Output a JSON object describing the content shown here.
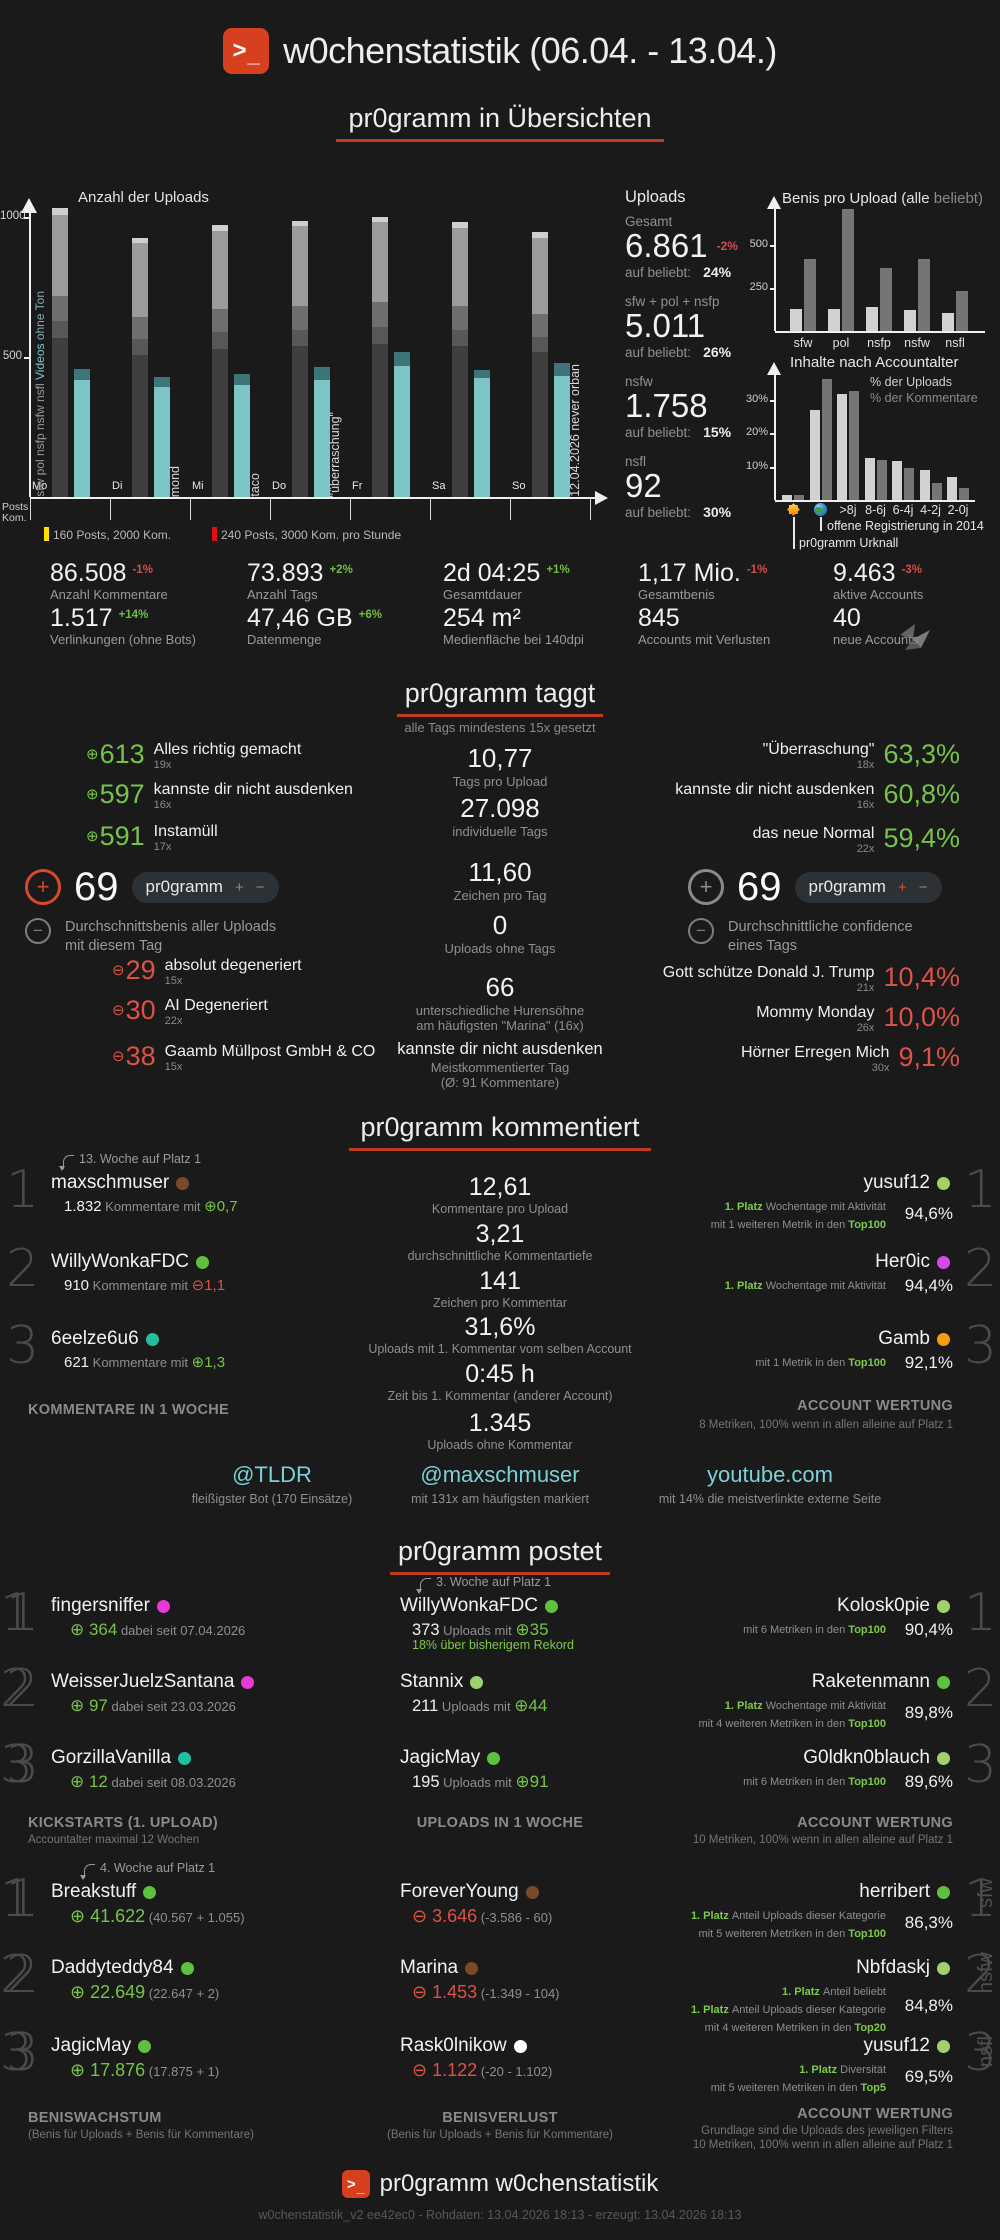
{
  "colors": {
    "background": "#1a1a1a",
    "accent_red_underline": "#c03a1c",
    "icon_red": "#d6401f",
    "green": "#76c34a",
    "red": "#db5247",
    "teal": "#7cc4c6",
    "teal_dark": "#3d7579",
    "cyan_link": "#7cd0da",
    "legend_yellow": "#ffe000",
    "legend_red": "#e01010"
  },
  "header": {
    "title": "w0chenstatistik (06.04. - 13.04.)"
  },
  "sections": {
    "uebersichten": {
      "heading": "pr0gramm in Übersichten"
    },
    "taggt": {
      "heading": "pr0gramm taggt",
      "subtitle": "alle Tags mindestens 15x gesetzt"
    },
    "kommentiert": {
      "heading": "pr0gramm kommentiert"
    },
    "postet": {
      "heading": "pr0gramm postet"
    }
  },
  "uploads_panel": {
    "title": "Uploads",
    "items": [
      {
        "label": "Gesamt",
        "value": "6.861",
        "delta": "-2%",
        "dir": "down",
        "beliebt_label": "auf beliebt:",
        "beliebt": "24%"
      },
      {
        "label": "sfw + pol + nsfp",
        "value": "5.011",
        "beliebt_label": "auf beliebt:",
        "beliebt": "26%"
      },
      {
        "label": "nsfw",
        "value": "1.758",
        "beliebt_label": "auf beliebt:",
        "beliebt": "15%"
      },
      {
        "label": "nsfl",
        "value": "92",
        "beliebt_label": "auf beliebt:",
        "beliebt": "30%"
      }
    ]
  },
  "chart_data": [
    {
      "id": "uploads_per_day",
      "type": "bar",
      "title": "Anzahl der Uploads",
      "categories": [
        "Mo",
        "Di",
        "Mi",
        "Do",
        "Fr",
        "Sa",
        "So"
      ],
      "series": [
        {
          "name": "sfw",
          "color": "#3f3f3f",
          "values": [
            570,
            510,
            530,
            540,
            550,
            540,
            520
          ]
        },
        {
          "name": "pol",
          "color": "#585858",
          "values": [
            60,
            55,
            60,
            60,
            60,
            58,
            55
          ]
        },
        {
          "name": "nsfp",
          "color": "#6e6e6e",
          "values": [
            90,
            80,
            85,
            85,
            90,
            85,
            82
          ]
        },
        {
          "name": "nsfw",
          "color": "#9c9c9c",
          "values": [
            290,
            265,
            280,
            285,
            285,
            282,
            273
          ]
        },
        {
          "name": "nsfl",
          "color": "#cfcfcf",
          "values": [
            25,
            20,
            20,
            20,
            20,
            20,
            20
          ]
        },
        {
          "name": "Videos",
          "color": "#7cc4c6",
          "values": [
            420,
            395,
            400,
            420,
            470,
            425,
            435
          ]
        },
        {
          "name": "Videos ohne Ton",
          "color": "#3d7579",
          "values": [
            40,
            35,
            40,
            45,
            50,
            30,
            45
          ]
        }
      ],
      "stacks": [
        [
          "sfw",
          "pol",
          "nsfp",
          "nsfw",
          "nsfl"
        ],
        [
          "Videos",
          "Videos ohne Ton"
        ]
      ],
      "ylim": [
        0,
        1100
      ],
      "yticks": [
        500,
        1000
      ],
      "axis_label_stack": [
        {
          "text": "sfw  pol  nsfp  nsfw  nsfl  ",
          "color": "#9a9a9a"
        },
        {
          "text": "Videos ",
          "color": "#7cc4c6"
        },
        {
          "text": " ohne Ton",
          "color": "#86aeb0"
        }
      ],
      "bar_annotations": {
        "Di": "mond",
        "Mi": "taco",
        "Do": "\"überraschung\"",
        "So": "12.04.2026 never orban"
      },
      "footer_rows": [
        "Posts",
        "Kom."
      ],
      "legend": [
        {
          "color": "#ffe000",
          "label": "160 Posts, 2000 Kom."
        },
        {
          "color": "#e01010",
          "label": "240 Posts, 3000 Kom. pro Stunde"
        }
      ]
    },
    {
      "id": "benis_pro_upload",
      "type": "bar",
      "title": "Benis pro Upload",
      "title_paren": [
        {
          "text": "(alle",
          "color": "#e0e0e0"
        },
        {
          "text": " beliebt)",
          "color": "#8a8a8a"
        }
      ],
      "categories": [
        "sfw",
        "pol",
        "nsfp",
        "nsfw",
        "nsfl"
      ],
      "series": [
        {
          "name": "alle",
          "color": "#d2d2d2",
          "values": [
            130,
            130,
            140,
            125,
            105
          ]
        },
        {
          "name": "beliebt",
          "color": "#757575",
          "values": [
            420,
            710,
            365,
            420,
            230
          ]
        }
      ],
      "ylim": [
        0,
        760
      ],
      "yticks": [
        250,
        500
      ]
    },
    {
      "id": "inhalte_nach_accountalter",
      "type": "bar",
      "title": "Inhalte nach Accountalter",
      "categories": [
        "💥",
        "🌍",
        ">8j",
        "8-6j",
        "6-4j",
        "4-2j",
        "2-0j"
      ],
      "series": [
        {
          "name": "% der Uploads",
          "color": "#d2d2d2",
          "values": [
            1.5,
            27,
            31.5,
            12.5,
            11.5,
            9,
            7
          ]
        },
        {
          "name": "% der Kommentare",
          "color": "#757575",
          "values": [
            1.5,
            36,
            32.5,
            12,
            9.5,
            5,
            3.5
          ]
        }
      ],
      "ylim": [
        0,
        38
      ],
      "yticks": [
        10,
        20,
        30
      ],
      "ytick_suffix": "%",
      "annotations": [
        {
          "category": "💥",
          "label": "pr0gramm Urknall"
        },
        {
          "category": "🌍",
          "label": "offene Registrierung in 2014"
        }
      ]
    }
  ],
  "stats": {
    "items": [
      {
        "value": "86.508",
        "delta": "-1%",
        "dir": "down",
        "label": "Anzahl Kommentare"
      },
      {
        "value": "73.893",
        "delta": "+2%",
        "dir": "up",
        "label": "Anzahl Tags"
      },
      {
        "value": "2d 04:25",
        "delta": "+1%",
        "dir": "up",
        "label": "Gesamtdauer"
      },
      {
        "value": "1,17 Mio.",
        "delta": "-1%",
        "dir": "down",
        "label": "Gesamtbenis"
      },
      {
        "value": "9.463",
        "delta": "-3%",
        "dir": "down",
        "label": "aktive Accounts"
      },
      {
        "value": "1.517",
        "delta": "+14%",
        "dir": "up",
        "label": "Verlinkungen (ohne Bots)"
      },
      {
        "value": "47,46 GB",
        "delta": "+6%",
        "dir": "up",
        "label": "Datenmenge"
      },
      {
        "value": "254 m²",
        "label": "Medienfläche bei 140dpi"
      },
      {
        "value": "845",
        "label": "Accounts mit Verlusten"
      },
      {
        "value": "40",
        "label": "neue Accounts"
      }
    ]
  },
  "taggt": {
    "top_benis": [
      {
        "value": "613",
        "label": "Alles richtig gemacht",
        "count": "19x"
      },
      {
        "value": "597",
        "label": "kannste dir nicht ausdenken",
        "count": "16x"
      },
      {
        "value": "591",
        "label": "Instamüll",
        "count": "17x"
      }
    ],
    "flop_benis": [
      {
        "value": "29",
        "label": "absolut degeneriert",
        "count": "15x"
      },
      {
        "value": "30",
        "label": "AI Degeneriert",
        "count": "22x"
      },
      {
        "value": "38",
        "label": "Gaamb Müllpost GmbH & CO",
        "count": "15x"
      }
    ],
    "mid_items": [
      {
        "value": "10,77",
        "line1": "Tags pro Upload"
      },
      {
        "value": "27.098",
        "line1": "individuelle Tags"
      },
      {
        "value": "11,60",
        "line1": "Zeichen pro Tag"
      },
      {
        "value": "0",
        "line1": "Uploads ohne Tags"
      },
      {
        "value": "66",
        "line1": "unterschiedliche Hurensöhne",
        "line2": "am häufigsten \"Marina\" (16x)"
      },
      {
        "value": "kannste dir nicht ausdenken",
        "text_style": true,
        "line1": "Meistkommentierter Tag",
        "line2": "(Ø: 91 Kommentare)"
      }
    ],
    "top_beliebt": [
      {
        "label": "\"Überraschung\"",
        "count": "18x",
        "value": "63,3%"
      },
      {
        "label": "kannste dir nicht ausdenken",
        "count": "16x",
        "value": "60,8%"
      },
      {
        "label": "das neue Normal",
        "count": "22x",
        "value": "59,4%"
      }
    ],
    "flop_confidence": [
      {
        "label": "Gott schütze Donald J. Trump",
        "count": "21x",
        "value": "10,4%"
      },
      {
        "label": "Mommy Monday",
        "count": "26x",
        "value": "10,0%"
      },
      {
        "label": "Hörner Erregen Mich",
        "count": "30x",
        "value": "9,1%"
      }
    ],
    "avg_left": {
      "value": "69",
      "tag": "pr0gramm",
      "plus": "+",
      "minus": "−",
      "desc1": "Durchschnittsbenis aller Uploads",
      "desc2": "mit diesem Tag"
    },
    "avg_right": {
      "value": "69",
      "tag": "pr0gramm",
      "plus": "+",
      "minus": "−",
      "desc1": "Durchschnittliche confidence",
      "desc2": "eines Tags"
    }
  },
  "kommentiert": {
    "left": {
      "footer": "KOMMENTARE IN 1 WOCHE",
      "entries": [
        {
          "annotation": "13. Woche auf Platz 1",
          "name": "maxschmuser",
          "dot": "#7a4a28",
          "count": "1.832",
          "mid": "Kommentare mit",
          "delta": "0,7",
          "dir": "up"
        },
        {
          "name": "WillyWonkaFDC",
          "dot": "#5fbf3f",
          "count": "910",
          "mid": "Kommentare mit",
          "delta": "1,1",
          "dir": "down"
        },
        {
          "name": "6eelze6u6",
          "dot": "#1fbfa0",
          "count": "621",
          "mid": "Kommentare mit",
          "delta": "1,3",
          "dir": "up"
        }
      ]
    },
    "middle": [
      {
        "value": "12,61",
        "label": "Kommentare pro Upload"
      },
      {
        "value": "3,21",
        "label": "durchschnittliche Kommentartiefe"
      },
      {
        "value": "141",
        "label": "Zeichen pro Kommentar"
      },
      {
        "value": "31,6%",
        "label": "Uploads mit 1. Kommentar vom selben Account"
      },
      {
        "value": "0:45 h",
        "label": "Zeit bis 1. Kommentar (anderer Account)"
      },
      {
        "value": "1.345",
        "label": "Uploads ohne Kommentar"
      }
    ],
    "right": {
      "footer": "ACCOUNT WERTUNG",
      "footer_sub": "8 Metriken, 100% wenn in allen alleine auf Platz 1",
      "entries": [
        {
          "name": "yusuf12",
          "dot": "#9dd36a",
          "value": "94,6%",
          "lines": [
            {
              "badge": "1. Platz",
              "text": "Wochentage mit Aktivität"
            },
            {
              "text": "mit 1 weiteren Metrik in den",
              "top": "Top100"
            }
          ]
        },
        {
          "name": "Her0ic",
          "dot": "#d946ef",
          "value": "94,4%",
          "lines": [
            {
              "badge": "1. Platz",
              "text": "Wochentage mit Aktivität"
            }
          ]
        },
        {
          "name": "Gamb",
          "dot": "#f59e0b",
          "value": "92,1%",
          "lines": [
            {
              "text": "mit 1 Metrik in den",
              "top": "Top100"
            }
          ]
        }
      ]
    },
    "links": [
      {
        "text": "@TLDR",
        "sub": "fleißigster Bot (170 Einsätze)"
      },
      {
        "text": "@maxschmuser",
        "sub": "mit 131x am häufigsten markiert"
      },
      {
        "text": "youtube.com",
        "sub": "mit 14% die meistverlinkte externe Seite"
      }
    ]
  },
  "postet": {
    "kickstarts": {
      "footer": "KICKSTARTS (1. UPLOAD)",
      "footer_sub": "Accountalter maximal 12 Wochen",
      "entries": [
        {
          "name": "fingersniffer",
          "dot": "#e838d8",
          "value": "364",
          "rest": "dabei seit 07.04.2026"
        },
        {
          "name": "WeisserJuelzSantana",
          "dot": "#e838d8",
          "value": "97",
          "rest": "dabei seit 23.03.2026"
        },
        {
          "name": "GorzillaVanilla",
          "dot": "#1fbfa0",
          "value": "12",
          "rest": "dabei seit 08.03.2026"
        }
      ]
    },
    "uploads_week": {
      "footer": "UPLOADS IN 1 WOCHE",
      "entries": [
        {
          "annotation": "3. Woche auf Platz 1",
          "name": "WillyWonkaFDC",
          "dot": "#5fbf3f",
          "count": "373",
          "mid": "Uploads mit",
          "delta": "35",
          "note": "18% über bisherigem Rekord"
        },
        {
          "name": "Stannix",
          "dot": "#9dd36a",
          "count": "211",
          "mid": "Uploads mit",
          "delta": "44"
        },
        {
          "name": "JagicMay",
          "dot": "#5fbf3f",
          "count": "195",
          "mid": "Uploads mit",
          "delta": "91"
        }
      ]
    },
    "wertung1": {
      "footer": "ACCOUNT WERTUNG",
      "footer_sub": "10 Metriken, 100% wenn in allen alleine auf Platz 1",
      "entries": [
        {
          "name": "Kolosk0pie",
          "dot": "#9dd36a",
          "value": "90,4%",
          "lines": [
            {
              "text": "mit 6 Metriken in den",
              "top": "Top100"
            }
          ]
        },
        {
          "name": "Raketenmann",
          "dot": "#5fbf3f",
          "value": "89,8%",
          "lines": [
            {
              "badge": "1. Platz",
              "text": "Wochentage mit Aktivität"
            },
            {
              "text": "mit 4 weiteren Metriken in den",
              "top": "Top100"
            }
          ]
        },
        {
          "name": "G0ldkn0blauch",
          "dot": "#9dd36a",
          "value": "89,6%",
          "lines": [
            {
              "text": "mit 6 Metriken in den",
              "top": "Top100"
            }
          ]
        }
      ]
    },
    "wachstum": {
      "footer": "BENISWACHSTUM",
      "footer_sub": "(Benis für Uploads + Benis für Kommentare)",
      "entries": [
        {
          "annotation": "4. Woche auf Platz 1",
          "name": "Breakstuff",
          "dot": "#5fbf3f",
          "value": "41.622",
          "paren": "(40.567 + 1.055)"
        },
        {
          "name": "Daddyteddy84",
          "dot": "#5fbf3f",
          "value": "22.649",
          "paren": "(22.647 + 2)"
        },
        {
          "name": "JagicMay",
          "dot": "#5fbf3f",
          "value": "17.876",
          "paren": "(17.875 + 1)"
        }
      ]
    },
    "verlust": {
      "footer": "BENISVERLUST",
      "footer_sub": "(Benis für Uploads + Benis für Kommentare)",
      "entries": [
        {
          "name": "ForeverYoung",
          "dot": "#7a4a28",
          "value": "3.646",
          "paren": "(-3.586 - 60)"
        },
        {
          "name": "Marina",
          "dot": "#7a4a28",
          "value": "1.453",
          "paren": "(-1.349 - 104)"
        },
        {
          "name": "Rask0lnikow",
          "dot": "#ffffff",
          "value": "1.122",
          "paren": "(-20 - 1.102)"
        }
      ]
    },
    "wertung2": {
      "footer": "ACCOUNT WERTUNG",
      "footer_sub1": "Grundlage sind die Uploads des jeweiligen Filters",
      "footer_sub2": "10 Metriken, 100% wenn in allen alleine auf Platz 1",
      "side_labels": [
        "sfw",
        "nsfw",
        "nsfl"
      ],
      "entries": [
        {
          "name": "herribert",
          "dot": "#5fbf3f",
          "value": "86,3%",
          "lines": [
            {
              "badge": "1. Platz",
              "text": "Anteil Uploads dieser Kategorie"
            },
            {
              "text": "mit 5 weiteren Metriken in den",
              "top": "Top100"
            }
          ]
        },
        {
          "name": "Nbfdaskj",
          "dot": "#9dd36a",
          "value": "84,8%",
          "lines": [
            {
              "badge": "1. Platz",
              "text": "Anteil beliebt"
            },
            {
              "badge": "1. Platz",
              "text": "Anteil Uploads dieser Kategorie"
            },
            {
              "text": "mit 4 weiteren Metriken in den",
              "top": "Top20"
            }
          ]
        },
        {
          "name": "yusuf12",
          "dot": "#9dd36a",
          "value": "69,5%",
          "lines": [
            {
              "badge": "1. Platz",
              "text": "Diversität"
            },
            {
              "text": "mit 5 weiteren Metriken in den",
              "top": "Top5"
            }
          ]
        }
      ]
    }
  },
  "footer": {
    "title": "pr0gramm w0chenstatistik",
    "colophon": "w0chenstatistik_v2 ee42ec0 - Rohdaten: 13.04.2026 18:13 - erzeugt: 13.04.2026 18:13"
  }
}
